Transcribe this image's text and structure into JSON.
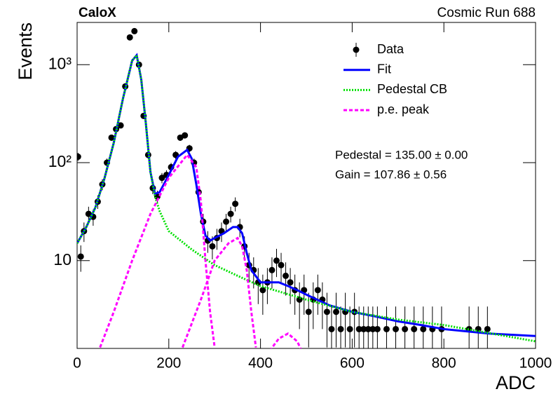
{
  "chart_data": {
    "type": "line",
    "title": "CaloX",
    "subtitle": "Cosmic Run 688",
    "x_label": "ADC",
    "y_label": "Events",
    "annotations": [
      "Pedestal = 135.00 ± 0.00",
      "Gain = 107.86 ± 0.56"
    ],
    "xlim": [
      0,
      1000
    ],
    "xticks": [
      0,
      200,
      400,
      600,
      800,
      1000
    ],
    "ylim": [
      1.27,
      2700
    ],
    "log_y": true,
    "yticks": [
      10,
      {
        "value": 100,
        "label": "10²"
      },
      {
        "value": 1000,
        "label": "10³"
      }
    ],
    "legend": "upper right",
    "series": [
      {
        "name": "Data",
        "style": "points",
        "color": "#000000",
        "x": [
          2,
          8,
          15,
          25,
          35,
          45,
          55,
          65,
          75,
          85,
          95,
          105,
          115,
          125,
          135,
          145,
          155,
          165,
          175,
          185,
          195,
          205,
          215,
          225,
          235,
          245,
          255,
          265,
          275,
          285,
          295,
          305,
          315,
          325,
          335,
          345,
          355,
          365,
          375,
          385,
          395,
          405,
          415,
          425,
          435,
          445,
          455,
          465,
          475,
          485,
          495,
          505,
          515,
          525,
          535,
          545,
          555,
          565,
          575,
          585,
          595,
          605,
          615,
          625,
          635,
          645,
          655,
          675,
          695,
          715,
          735,
          755,
          775,
          795,
          855,
          875,
          895
        ],
        "values": [
          115,
          11,
          20,
          30,
          28,
          40,
          60,
          100,
          180,
          220,
          240,
          600,
          1900,
          2200,
          1000,
          300,
          120,
          55,
          45,
          70,
          75,
          90,
          120,
          180,
          190,
          140,
          100,
          50,
          25,
          16,
          14,
          17,
          20,
          25,
          30,
          38,
          22,
          14,
          9,
          8,
          6,
          5,
          6,
          8,
          10,
          9,
          7,
          6,
          5,
          4,
          5,
          3,
          4,
          5,
          4,
          3,
          2,
          3,
          2,
          3,
          2,
          3,
          2,
          2,
          2,
          2,
          2,
          2,
          2,
          2,
          2,
          2,
          2,
          2,
          2,
          2,
          2
        ],
        "errors": [
          11,
          3.3,
          4.5,
          5.5,
          5.3,
          6.3,
          7.7,
          10,
          13,
          15,
          15,
          24,
          44,
          47,
          32,
          17,
          11,
          7.4,
          6.7,
          8.4,
          8.7,
          9.5,
          11,
          13,
          14,
          12,
          10,
          7.1,
          5,
          4,
          3.7,
          4.1,
          4.5,
          5,
          5.5,
          6.2,
          4.7,
          3.7,
          3,
          2.8,
          2.4,
          2.2,
          2.4,
          2.8,
          3.2,
          3,
          2.6,
          2.4,
          2.2,
          2,
          2.2,
          1.7,
          2,
          2.2,
          2,
          1.7,
          1.4,
          1.7,
          1.4,
          1.7,
          1.4,
          1.7,
          1.4,
          1.4,
          1.4,
          1.4,
          1.4,
          1.4,
          1.4,
          1.4,
          1.4,
          1.4,
          1.4,
          1.4,
          1.4,
          1.4,
          1.4
        ]
      },
      {
        "name": "Fit",
        "style": "solid",
        "color": "#0000ff",
        "x": [
          0,
          20,
          40,
          60,
          80,
          100,
          120,
          130,
          140,
          150,
          160,
          170,
          180,
          200,
          220,
          240,
          250,
          260,
          270,
          280,
          290,
          300,
          320,
          340,
          350,
          360,
          370,
          380,
          400,
          420,
          440,
          460,
          480,
          500,
          550,
          600,
          650,
          700,
          750,
          800,
          900,
          1000
        ],
        "values": [
          15,
          22,
          35,
          70,
          160,
          450,
          1100,
          1250,
          700,
          250,
          80,
          48,
          50,
          75,
          115,
          135,
          110,
          60,
          30,
          18,
          16,
          17,
          19,
          22,
          22,
          19,
          12,
          8,
          6,
          6,
          6,
          5.5,
          5,
          4.5,
          3.5,
          3,
          2.7,
          2.4,
          2.2,
          2,
          1.8,
          1.7
        ]
      },
      {
        "name": "Pedestal CB",
        "style": "dotted",
        "color": "#00e000",
        "x": [
          0,
          20,
          40,
          60,
          80,
          100,
          120,
          130,
          140,
          150,
          160,
          170,
          180,
          200,
          250,
          300,
          350,
          400,
          500,
          600,
          700,
          800,
          1000
        ],
        "values": [
          15,
          22,
          35,
          70,
          160,
          450,
          1100,
          1250,
          700,
          250,
          80,
          45,
          32,
          20,
          13,
          9,
          7,
          5.5,
          4,
          3,
          2.5,
          2.2,
          1.5
        ]
      },
      {
        "name": "p.e. peak",
        "style": "dashed",
        "color": "#ff00ff",
        "x": [
          50,
          80,
          120,
          160,
          200,
          240,
          260,
          270,
          280,
          290,
          300,
          null,
          230,
          270,
          300,
          330,
          350,
          360,
          370,
          380,
          390,
          null,
          420,
          440,
          460,
          480,
          490
        ],
        "values": [
          1.3,
          3,
          10,
          30,
          70,
          120,
          90,
          40,
          10,
          3,
          1.3,
          null,
          1.3,
          4,
          10,
          15,
          17,
          14,
          8,
          3,
          1.3,
          null,
          1.2,
          1.6,
          1.8,
          1.5,
          1.2
        ]
      }
    ]
  }
}
